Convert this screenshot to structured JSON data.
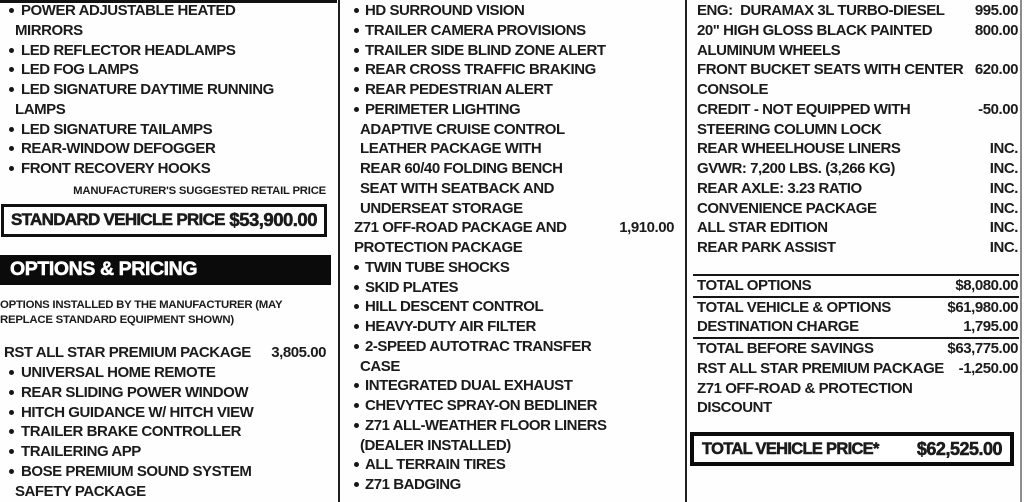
{
  "colors": {
    "ink": "#1b1b1b",
    "bar_bg": "#0b0b0b",
    "bar_text": "#ffffff",
    "bg": "#fffefe"
  },
  "left": {
    "std": [
      {
        "t": "POWER ADJUSTABLE HEATED"
      },
      {
        "t": "MIRRORS"
      },
      {
        "t": "LED REFLECTOR HEADLAMPS"
      },
      {
        "t": "LED FOG LAMPS"
      },
      {
        "t": "LED SIGNATURE DAYTIME RUNNING"
      },
      {
        "t": "LAMPS"
      },
      {
        "t": "LED SIGNATURE TAILAMPS"
      },
      {
        "t": "REAR-WINDOW DEFOGGER"
      },
      {
        "t": "FRONT RECOVERY HOOKS"
      }
    ],
    "msrp_note": "MANUFACTURER'S SUGGESTED RETAIL PRICE",
    "standard_price": {
      "label": "STANDARD VEHICLE PRICE",
      "value": "$53,900.00"
    },
    "options_header": "OPTIONS & PRICING",
    "options_note": "OPTIONS INSTALLED BY THE MANUFACTURER (MAY REPLACE STANDARD EQUIPMENT SHOWN)",
    "opt": [
      {
        "t": "RST ALL STAR PREMIUM PACKAGE",
        "p": "3,805.00"
      },
      {
        "t": "UNIVERSAL HOME REMOTE"
      },
      {
        "t": "REAR SLIDING POWER WINDOW"
      },
      {
        "t": "HITCH GUIDANCE W/ HITCH VIEW"
      },
      {
        "t": "TRAILER BRAKE CONTROLLER"
      },
      {
        "t": "TRAILERING APP"
      },
      {
        "t": "BOSE PREMIUM SOUND SYSTEM"
      },
      {
        "t": "SAFETY PACKAGE"
      }
    ]
  },
  "mid": {
    "items": [
      {
        "t": "HD SURROUND VISION"
      },
      {
        "t": "TRAILER CAMERA PROVISIONS"
      },
      {
        "t": "TRAILER SIDE BLIND ZONE ALERT"
      },
      {
        "t": "REAR CROSS TRAFFIC BRAKING"
      },
      {
        "t": "REAR PEDESTRIAN ALERT"
      },
      {
        "t": "PERIMETER LIGHTING"
      },
      {
        "t": "ADAPTIVE CRUISE CONTROL"
      },
      {
        "t": "LEATHER PACKAGE WITH"
      },
      {
        "t": "REAR 60/40 FOLDING BENCH"
      },
      {
        "t": "SEAT WITH SEATBACK AND"
      },
      {
        "t": "UNDERSEAT STORAGE"
      },
      {
        "t": "Z71 OFF-ROAD PACKAGE AND",
        "p": "1,910.00"
      },
      {
        "t": "PROTECTION PACKAGE"
      },
      {
        "t": "TWIN TUBE SHOCKS"
      },
      {
        "t": "SKID PLATES"
      },
      {
        "t": "HILL DESCENT CONTROL"
      },
      {
        "t": "HEAVY-DUTY AIR FILTER"
      },
      {
        "t": "2-SPEED AUTOTRAC TRANSFER"
      },
      {
        "t": "CASE"
      },
      {
        "t": "INTEGRATED DUAL EXHAUST"
      },
      {
        "t": "CHEVYTEC SPRAY-ON BEDLINER"
      },
      {
        "t": "Z71 ALL-WEATHER FLOOR LINERS"
      },
      {
        "t": "(DEALER INSTALLED)"
      },
      {
        "t": "ALL TERRAIN TIRES"
      },
      {
        "t": "Z71 BADGING"
      }
    ]
  },
  "right": {
    "items": [
      {
        "t": "ENG:  DURAMAX 3L TURBO-DIESEL",
        "p": "995.00"
      },
      {
        "t": "20\" HIGH GLOSS BLACK PAINTED",
        "p": "800.00"
      },
      {
        "t": "ALUMINUM WHEELS",
        "p": ""
      },
      {
        "t": "FRONT BUCKET SEATS WITH CENTER",
        "p": "620.00"
      },
      {
        "t": "CONSOLE",
        "p": ""
      },
      {
        "t": "CREDIT - NOT EQUIPPED WITH",
        "p": "-50.00"
      },
      {
        "t": "STEERING COLUMN LOCK",
        "p": ""
      },
      {
        "t": "REAR WHEELHOUSE LINERS",
        "p": "INC."
      },
      {
        "t": "GVWR: 7,200 LBS. (3,266 KG)",
        "p": "INC."
      },
      {
        "t": "REAR AXLE: 3.23 RATIO",
        "p": "INC."
      },
      {
        "t": "CONVENIENCE PACKAGE",
        "p": "INC."
      },
      {
        "t": "ALL STAR EDITION",
        "p": "INC."
      },
      {
        "t": "REAR PARK ASSIST",
        "p": "INC."
      }
    ],
    "totals": [
      {
        "label": "TOTAL OPTIONS",
        "value": "$8,080.00"
      },
      {
        "label": "TOTAL VEHICLE & OPTIONS",
        "value": "$61,980.00"
      },
      {
        "label": "DESTINATION CHARGE",
        "value": "1,795.00"
      },
      {
        "label": "TOTAL BEFORE SAVINGS",
        "value": "$63,775.00"
      },
      {
        "label": "RST ALL STAR PREMIUM PACKAGE",
        "value": "-1,250.00"
      },
      {
        "label": "Z71 OFF-ROAD & PROTECTION",
        "value": ""
      },
      {
        "label": "DISCOUNT",
        "value": ""
      }
    ],
    "total_price": {
      "label": "TOTAL VEHICLE PRICE*",
      "value": "$62,525.00"
    }
  }
}
